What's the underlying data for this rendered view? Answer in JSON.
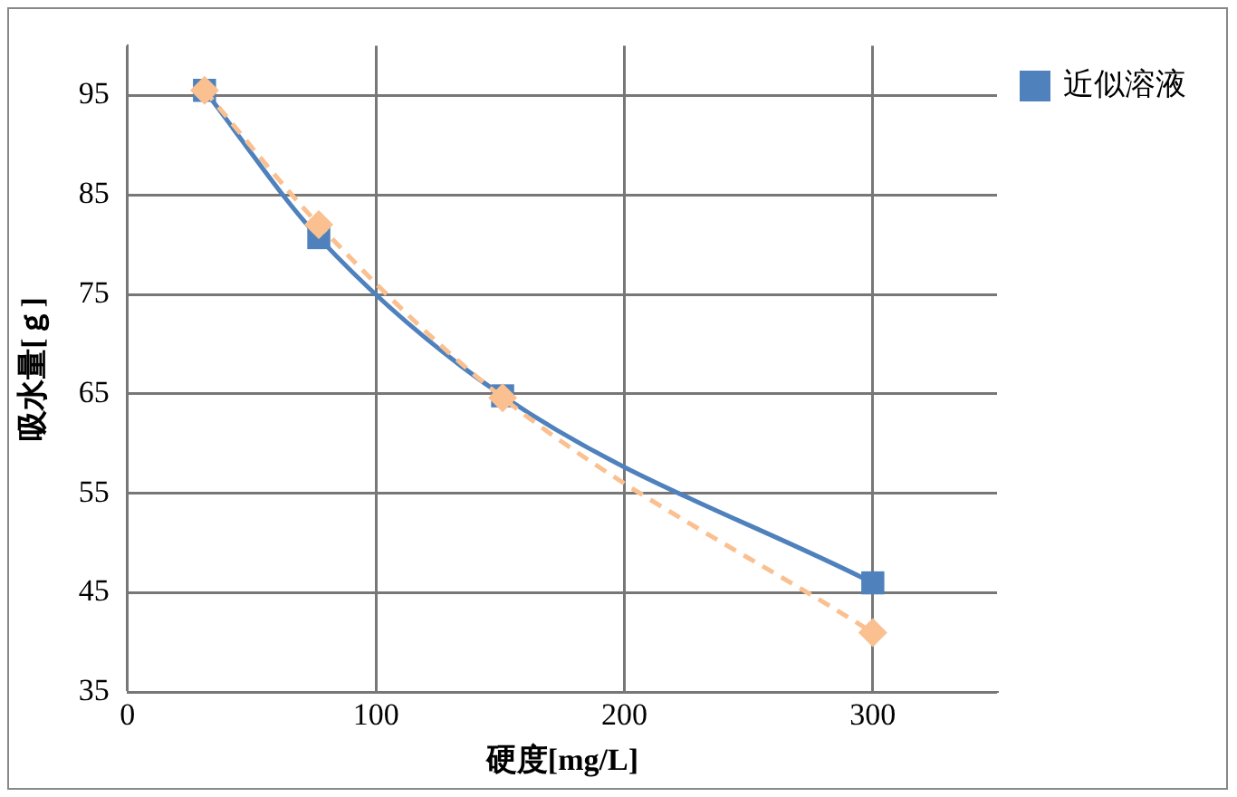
{
  "chart_data": {
    "type": "line",
    "xlabel": "硬度[mg/L]",
    "ylabel": "吸水量[ｇ]",
    "xlim": [
      0,
      350
    ],
    "xticks": [
      0,
      100,
      200,
      300
    ],
    "ylim": [
      35,
      100
    ],
    "yticks": [
      35,
      45,
      55,
      65,
      75,
      85,
      95
    ],
    "grid": true,
    "legend": "top right",
    "series": [
      {
        "name": "近似溶液",
        "color": "#4f81bd",
        "x": [
          31,
          77,
          151,
          300
        ],
        "values": [
          95.5,
          80.7,
          64.8,
          46
        ],
        "marker": "square",
        "line_style": "solid"
      },
      {
        "color": "#fac090",
        "x": [
          31,
          77,
          151,
          300
        ],
        "values": [
          95.5,
          82,
          64.6,
          41
        ],
        "marker": "diamond",
        "line_style": "dashed"
      }
    ]
  }
}
